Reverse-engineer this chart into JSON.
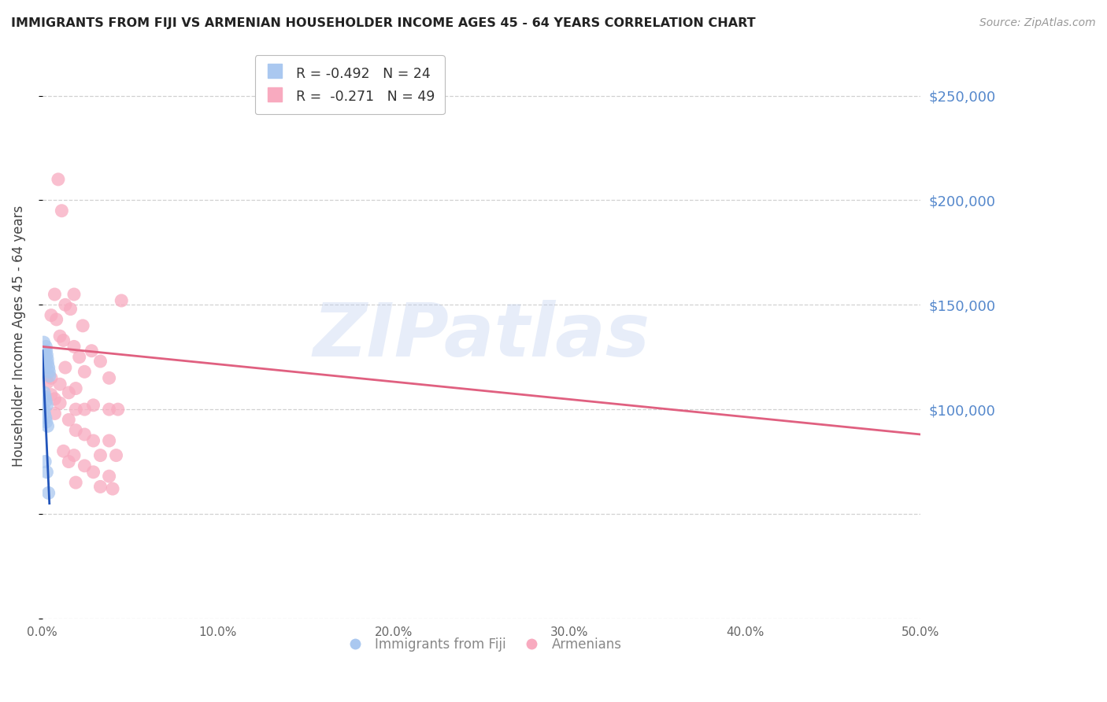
{
  "title": "IMMIGRANTS FROM FIJI VS ARMENIAN HOUSEHOLDER INCOME AGES 45 - 64 YEARS CORRELATION CHART",
  "source": "Source: ZipAtlas.com",
  "ylabel": "Householder Income Ages 45 - 64 years",
  "xlim": [
    0.0,
    50.0
  ],
  "ylim": [
    0,
    270000
  ],
  "yticks": [
    0,
    50000,
    100000,
    150000,
    200000,
    250000
  ],
  "right_ytick_labels": [
    "",
    "",
    "$100,000",
    "$150,000",
    "$200,000",
    "$250,000"
  ],
  "xticks": [
    0.0,
    10.0,
    20.0,
    30.0,
    40.0,
    50.0
  ],
  "xtick_labels": [
    "0.0%",
    "10.0%",
    "20.0%",
    "30.0%",
    "40.0%",
    "50.0%"
  ],
  "watermark_text": "ZIPatlas",
  "fiji_color": "#aac8f0",
  "armenian_color": "#f8aabf",
  "fiji_edge_color": "#7aaade",
  "armenian_edge_color": "#e888a8",
  "fiji_trend_color": "#2255bb",
  "armenian_trend_color": "#e06080",
  "background_color": "#ffffff",
  "grid_color": "#cccccc",
  "title_color": "#222222",
  "axis_label_color": "#444444",
  "right_tick_color": "#5588cc",
  "legend_R_fiji": "R = -0.492",
  "legend_N_fiji": "N = 24",
  "legend_R_arm": "R =  -0.271",
  "legend_N_arm": "N = 49",
  "fiji_points_pct": [
    [
      0.08,
      132000
    ],
    [
      0.12,
      128000
    ],
    [
      0.15,
      125000
    ],
    [
      0.18,
      122000
    ],
    [
      0.2,
      130000
    ],
    [
      0.22,
      128000
    ],
    [
      0.25,
      126000
    ],
    [
      0.28,
      124000
    ],
    [
      0.3,
      122000
    ],
    [
      0.35,
      120000
    ],
    [
      0.38,
      118000
    ],
    [
      0.4,
      116000
    ],
    [
      0.1,
      108000
    ],
    [
      0.15,
      106000
    ],
    [
      0.2,
      104000
    ],
    [
      0.25,
      102000
    ],
    [
      0.08,
      100000
    ],
    [
      0.12,
      98000
    ],
    [
      0.18,
      96000
    ],
    [
      0.22,
      94000
    ],
    [
      0.3,
      92000
    ],
    [
      0.15,
      75000
    ],
    [
      0.25,
      70000
    ],
    [
      0.35,
      60000
    ]
  ],
  "armenian_points_pct": [
    [
      0.9,
      210000
    ],
    [
      1.1,
      195000
    ],
    [
      0.7,
      155000
    ],
    [
      1.8,
      155000
    ],
    [
      4.5,
      152000
    ],
    [
      1.3,
      150000
    ],
    [
      1.6,
      148000
    ],
    [
      0.5,
      145000
    ],
    [
      0.8,
      143000
    ],
    [
      2.3,
      140000
    ],
    [
      1.0,
      135000
    ],
    [
      1.2,
      133000
    ],
    [
      1.8,
      130000
    ],
    [
      2.8,
      128000
    ],
    [
      2.1,
      125000
    ],
    [
      3.3,
      123000
    ],
    [
      1.3,
      120000
    ],
    [
      2.4,
      118000
    ],
    [
      0.5,
      115000
    ],
    [
      3.8,
      115000
    ],
    [
      0.3,
      113000
    ],
    [
      1.0,
      112000
    ],
    [
      1.9,
      110000
    ],
    [
      1.5,
      108000
    ],
    [
      0.5,
      107000
    ],
    [
      0.7,
      105000
    ],
    [
      1.0,
      103000
    ],
    [
      2.9,
      102000
    ],
    [
      1.9,
      100000
    ],
    [
      2.4,
      100000
    ],
    [
      3.8,
      100000
    ],
    [
      4.3,
      100000
    ],
    [
      0.7,
      98000
    ],
    [
      1.5,
      95000
    ],
    [
      1.9,
      90000
    ],
    [
      2.4,
      88000
    ],
    [
      2.9,
      85000
    ],
    [
      3.8,
      85000
    ],
    [
      1.2,
      80000
    ],
    [
      1.8,
      78000
    ],
    [
      3.3,
      78000
    ],
    [
      4.2,
      78000
    ],
    [
      1.5,
      75000
    ],
    [
      2.4,
      73000
    ],
    [
      2.9,
      70000
    ],
    [
      3.8,
      68000
    ],
    [
      1.9,
      65000
    ],
    [
      3.3,
      63000
    ],
    [
      4.0,
      62000
    ]
  ]
}
